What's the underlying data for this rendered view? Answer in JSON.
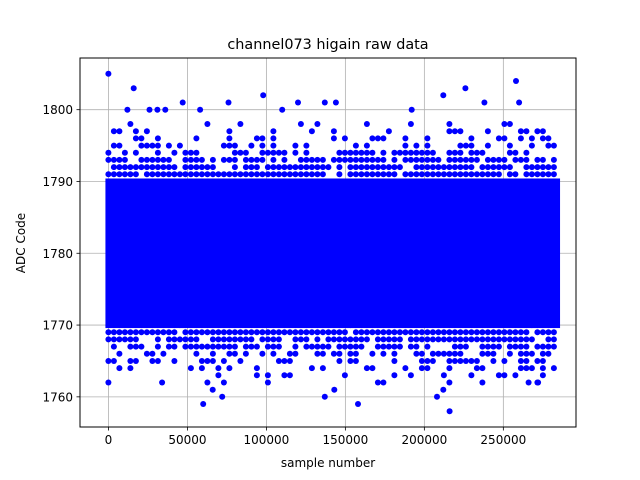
{
  "chart_data": {
    "type": "scatter",
    "title": "channel073 higain raw data",
    "xlabel": "sample number",
    "ylabel": "ADC Code",
    "xlim": [
      -18000,
      296000
    ],
    "ylim": [
      1755.8,
      1807.2
    ],
    "xticks": [
      0,
      50000,
      100000,
      150000,
      200000,
      250000
    ],
    "yticks": [
      1760,
      1770,
      1780,
      1790,
      1800
    ],
    "grid": true,
    "marker_color": "#0000ff",
    "series": [
      {
        "x_range": [
          0,
          284000
        ],
        "dense_band": [
          1770,
          1790
        ],
        "band_rows": [
          1762,
          1763,
          1764,
          1765,
          1766,
          1767,
          1768,
          1769,
          1770,
          1790,
          1791,
          1792,
          1793,
          1794,
          1795,
          1796,
          1797,
          1798,
          1799
        ],
        "outliers": [
          {
            "x": 0,
            "y": 1805
          },
          {
            "x": 16000,
            "y": 1803
          },
          {
            "x": 98000,
            "y": 1802
          },
          {
            "x": 212000,
            "y": 1802
          },
          {
            "x": 226000,
            "y": 1803
          },
          {
            "x": 258000,
            "y": 1804
          },
          {
            "x": 260000,
            "y": 1801
          },
          {
            "x": 47000,
            "y": 1801
          },
          {
            "x": 76000,
            "y": 1801
          },
          {
            "x": 120000,
            "y": 1801
          },
          {
            "x": 137000,
            "y": 1801
          },
          {
            "x": 144000,
            "y": 1801
          },
          {
            "x": 238000,
            "y": 1801
          },
          {
            "x": 12000,
            "y": 1800
          },
          {
            "x": 26000,
            "y": 1800
          },
          {
            "x": 31000,
            "y": 1800
          },
          {
            "x": 36000,
            "y": 1800
          },
          {
            "x": 58000,
            "y": 1800
          },
          {
            "x": 110000,
            "y": 1800
          },
          {
            "x": 192000,
            "y": 1800
          },
          {
            "x": 60000,
            "y": 1759
          },
          {
            "x": 137000,
            "y": 1760
          },
          {
            "x": 72000,
            "y": 1760
          },
          {
            "x": 158000,
            "y": 1759
          },
          {
            "x": 208000,
            "y": 1760
          },
          {
            "x": 216000,
            "y": 1758
          },
          {
            "x": 143000,
            "y": 1761
          },
          {
            "x": 66000,
            "y": 1761
          },
          {
            "x": 212000,
            "y": 1761
          },
          {
            "x": 34000,
            "y": 1762
          },
          {
            "x": 0,
            "y": 1762
          },
          {
            "x": 266000,
            "y": 1762
          },
          {
            "x": 272000,
            "y": 1762
          }
        ]
      }
    ]
  }
}
